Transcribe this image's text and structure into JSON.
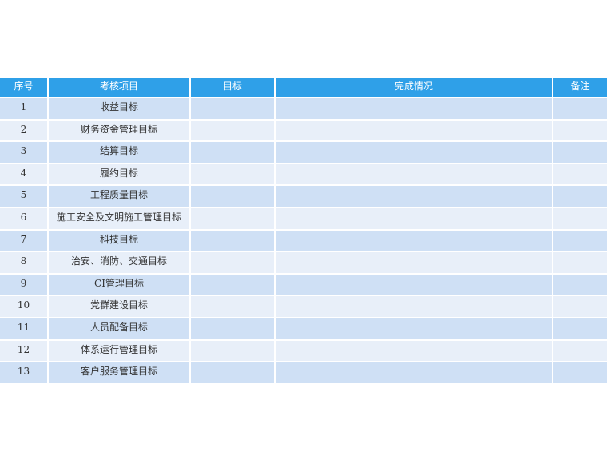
{
  "table": {
    "headers": [
      "序号",
      "考核项目",
      "目标",
      "完成情况",
      "备注"
    ],
    "rows": [
      {
        "no": "1",
        "item": "收益目标"
      },
      {
        "no": "2",
        "item": "财务资金管理目标"
      },
      {
        "no": "3",
        "item": "结算目标"
      },
      {
        "no": "4",
        "item": "履约目标"
      },
      {
        "no": "5",
        "item": "工程质量目标"
      },
      {
        "no": "6",
        "item": "施工安全及文明施工管理目标"
      },
      {
        "no": "7",
        "item": "科技目标"
      },
      {
        "no": "8",
        "item": "治安、消防、交通目标"
      },
      {
        "no": "9",
        "item": "CI管理目标"
      },
      {
        "no": "10",
        "item": "党群建设目标"
      },
      {
        "no": "11",
        "item": "人员配备目标"
      },
      {
        "no": "12",
        "item": "体系运行管理目标"
      },
      {
        "no": "13",
        "item": "客户服务管理目标"
      }
    ]
  },
  "colors": {
    "header": "#2fa0e8",
    "row_odd": "#cfe0f5",
    "row_even": "#e8eff9"
  }
}
